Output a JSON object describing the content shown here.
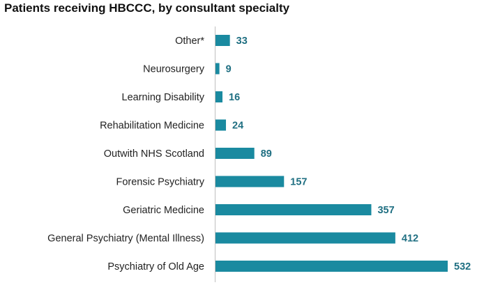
{
  "chart_data": {
    "type": "bar",
    "orientation": "horizontal",
    "title": "Patients receiving HBCCC, by consultant specialty",
    "categories": [
      "Other*",
      "Neurosurgery",
      "Learning Disability",
      "Rehabilitation Medicine",
      "Outwith NHS Scotland",
      "Forensic Psychiatry",
      "Geriatric Medicine",
      "General Psychiatry (Mental Illness)",
      "Psychiatry of Old Age"
    ],
    "values": [
      33,
      9,
      16,
      24,
      89,
      157,
      357,
      412,
      532
    ],
    "xlim": [
      0,
      532
    ],
    "grid": false,
    "bar_color": "#1a8aa0",
    "value_label_color": "#1f6f82"
  }
}
